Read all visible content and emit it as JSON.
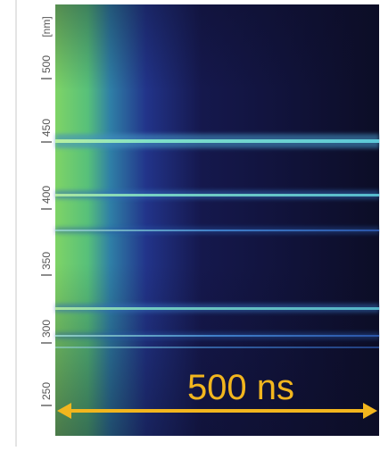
{
  "axis": {
    "unit": "[nm]",
    "ticks": [
      "500",
      "450",
      "400",
      "350",
      "300",
      "250"
    ]
  },
  "annotation": "500 ns"
}
